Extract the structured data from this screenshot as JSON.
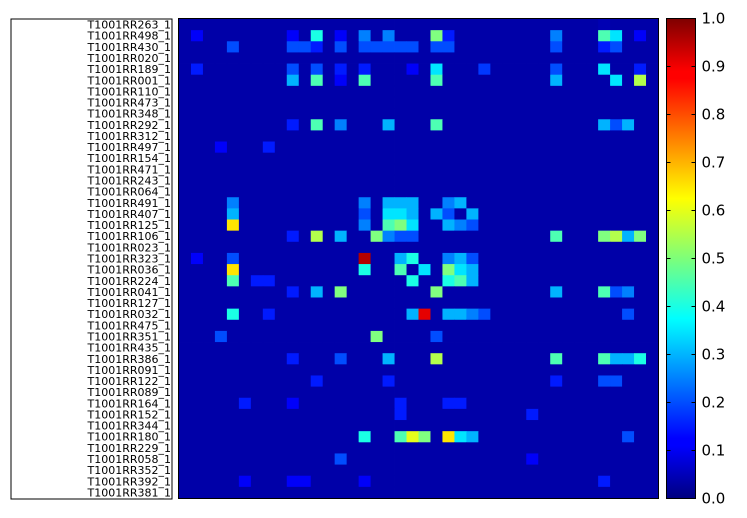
{
  "chart_data": {
    "type": "heatmap",
    "colormap": "jet",
    "rows": [
      "T1001RR263_1",
      "T1001RR498_1",
      "T1001RR430_1",
      "T1001RR020_1",
      "T1001RR189_1",
      "T1001RR001_1",
      "T1001RR110_1",
      "T1001RR473_1",
      "T1001RR348_1",
      "T1001RR292_1",
      "T1001RR312_1",
      "T1001RR497_1",
      "T1001RR154_1",
      "T1001RR471_1",
      "T1001RR243_1",
      "T1001RR064_1",
      "T1001RR491_1",
      "T1001RR407_1",
      "T1001RR125_1",
      "T1001RR106_1",
      "T1001RR023_1",
      "T1001RR323_1",
      "T1001RR036_1",
      "T1001RR224_1",
      "T1001RR041_1",
      "T1001RR127_1",
      "T1001RR032_1",
      "T1001RR475_1",
      "T1001RR351_1",
      "T1001RR435_1",
      "T1001RR386_1",
      "T1001RR091_1",
      "T1001RR122_1",
      "T1001RR089_1",
      "T1001RR164_1",
      "T1001RR152_1",
      "T1001RR344_1",
      "T1001RR180_1",
      "T1001RR229_1",
      "T1001RR058_1",
      "T1001RR352_1",
      "T1001RR392_1",
      "T1001RR381_1"
    ],
    "n_columns": 40,
    "colorbar": {
      "min": 0.0,
      "max": 1.0,
      "ticks": [
        "0.0",
        "0.1",
        "0.2",
        "0.3",
        "0.4",
        "0.5",
        "0.6",
        "0.7",
        "0.8",
        "0.9",
        "1.0"
      ]
    },
    "highlights": [
      {
        "row": 0,
        "col": 35,
        "value": 0.05
      },
      {
        "row": 1,
        "col": 1,
        "value": 0.12
      },
      {
        "row": 1,
        "col": 9,
        "value": 0.12
      },
      {
        "row": 1,
        "col": 11,
        "value": 0.4
      },
      {
        "row": 1,
        "col": 13,
        "value": 0.12
      },
      {
        "row": 1,
        "col": 15,
        "value": 0.25
      },
      {
        "row": 1,
        "col": 17,
        "value": 0.25
      },
      {
        "row": 1,
        "col": 21,
        "value": 0.5
      },
      {
        "row": 1,
        "col": 22,
        "value": 0.15
      },
      {
        "row": 1,
        "col": 31,
        "value": 0.25
      },
      {
        "row": 1,
        "col": 35,
        "value": 0.45
      },
      {
        "row": 1,
        "col": 36,
        "value": 0.35
      },
      {
        "row": 1,
        "col": 38,
        "value": 0.12
      },
      {
        "row": 2,
        "col": 4,
        "value": 0.2
      },
      {
        "row": 2,
        "col": 9,
        "value": 0.2
      },
      {
        "row": 2,
        "col": 10,
        "value": 0.2
      },
      {
        "row": 2,
        "col": 11,
        "value": 0.15
      },
      {
        "row": 2,
        "col": 13,
        "value": 0.2
      },
      {
        "row": 2,
        "col": 15,
        "value": 0.2
      },
      {
        "row": 2,
        "col": 16,
        "value": 0.2
      },
      {
        "row": 2,
        "col": 17,
        "value": 0.2
      },
      {
        "row": 2,
        "col": 18,
        "value": 0.2
      },
      {
        "row": 2,
        "col": 19,
        "value": 0.2
      },
      {
        "row": 2,
        "col": 21,
        "value": 0.2
      },
      {
        "row": 2,
        "col": 22,
        "value": 0.2
      },
      {
        "row": 2,
        "col": 31,
        "value": 0.2
      },
      {
        "row": 2,
        "col": 35,
        "value": 0.15
      },
      {
        "row": 2,
        "col": 36,
        "value": 0.2
      },
      {
        "row": 4,
        "col": 1,
        "value": 0.15
      },
      {
        "row": 4,
        "col": 9,
        "value": 0.2
      },
      {
        "row": 4,
        "col": 11,
        "value": 0.2
      },
      {
        "row": 4,
        "col": 13,
        "value": 0.15
      },
      {
        "row": 4,
        "col": 15,
        "value": 0.15
      },
      {
        "row": 4,
        "col": 19,
        "value": 0.12
      },
      {
        "row": 4,
        "col": 21,
        "value": 0.35
      },
      {
        "row": 4,
        "col": 25,
        "value": 0.18
      },
      {
        "row": 4,
        "col": 31,
        "value": 0.2
      },
      {
        "row": 4,
        "col": 35,
        "value": 0.35
      },
      {
        "row": 4,
        "col": 38,
        "value": 0.15
      },
      {
        "row": 5,
        "col": 9,
        "value": 0.3
      },
      {
        "row": 5,
        "col": 11,
        "value": 0.45
      },
      {
        "row": 5,
        "col": 13,
        "value": 0.12
      },
      {
        "row": 5,
        "col": 15,
        "value": 0.45
      },
      {
        "row": 5,
        "col": 21,
        "value": 0.45
      },
      {
        "row": 5,
        "col": 31,
        "value": 0.3
      },
      {
        "row": 5,
        "col": 36,
        "value": 0.35
      },
      {
        "row": 5,
        "col": 38,
        "value": 0.55
      },
      {
        "row": 9,
        "col": 9,
        "value": 0.15
      },
      {
        "row": 9,
        "col": 11,
        "value": 0.45
      },
      {
        "row": 9,
        "col": 13,
        "value": 0.25
      },
      {
        "row": 9,
        "col": 17,
        "value": 0.3
      },
      {
        "row": 9,
        "col": 21,
        "value": 0.45
      },
      {
        "row": 9,
        "col": 35,
        "value": 0.3
      },
      {
        "row": 9,
        "col": 36,
        "value": 0.2
      },
      {
        "row": 9,
        "col": 37,
        "value": 0.3
      },
      {
        "row": 11,
        "col": 3,
        "value": 0.12
      },
      {
        "row": 11,
        "col": 7,
        "value": 0.15
      },
      {
        "row": 16,
        "col": 4,
        "value": 0.25
      },
      {
        "row": 16,
        "col": 15,
        "value": 0.25
      },
      {
        "row": 16,
        "col": 17,
        "value": 0.3
      },
      {
        "row": 16,
        "col": 18,
        "value": 0.3
      },
      {
        "row": 16,
        "col": 19,
        "value": 0.3
      },
      {
        "row": 16,
        "col": 22,
        "value": 0.25
      },
      {
        "row": 16,
        "col": 23,
        "value": 0.3
      },
      {
        "row": 17,
        "col": 4,
        "value": 0.3
      },
      {
        "row": 17,
        "col": 15,
        "value": 0.2
      },
      {
        "row": 17,
        "col": 17,
        "value": 0.35
      },
      {
        "row": 17,
        "col": 18,
        "value": 0.35
      },
      {
        "row": 17,
        "col": 19,
        "value": 0.3
      },
      {
        "row": 17,
        "col": 21,
        "value": 0.3
      },
      {
        "row": 17,
        "col": 22,
        "value": 0.2
      },
      {
        "row": 17,
        "col": 24,
        "value": 0.3
      },
      {
        "row": 18,
        "col": 4,
        "value": 0.65
      },
      {
        "row": 18,
        "col": 15,
        "value": 0.25
      },
      {
        "row": 18,
        "col": 17,
        "value": 0.45
      },
      {
        "row": 18,
        "col": 18,
        "value": 0.5
      },
      {
        "row": 18,
        "col": 19,
        "value": 0.35
      },
      {
        "row": 18,
        "col": 22,
        "value": 0.3
      },
      {
        "row": 18,
        "col": 23,
        "value": 0.25
      },
      {
        "row": 18,
        "col": 24,
        "value": 0.2
      },
      {
        "row": 19,
        "col": 9,
        "value": 0.15
      },
      {
        "row": 19,
        "col": 11,
        "value": 0.55
      },
      {
        "row": 19,
        "col": 13,
        "value": 0.3
      },
      {
        "row": 19,
        "col": 16,
        "value": 0.5
      },
      {
        "row": 19,
        "col": 17,
        "value": 0.25
      },
      {
        "row": 19,
        "col": 18,
        "value": 0.2
      },
      {
        "row": 19,
        "col": 19,
        "value": 0.2
      },
      {
        "row": 19,
        "col": 31,
        "value": 0.45
      },
      {
        "row": 19,
        "col": 35,
        "value": 0.5
      },
      {
        "row": 19,
        "col": 36,
        "value": 0.55
      },
      {
        "row": 19,
        "col": 37,
        "value": 0.3
      },
      {
        "row": 19,
        "col": 38,
        "value": 0.5
      },
      {
        "row": 21,
        "col": 1,
        "value": 0.12
      },
      {
        "row": 21,
        "col": 4,
        "value": 0.2
      },
      {
        "row": 21,
        "col": 15,
        "value": 0.95
      },
      {
        "row": 21,
        "col": 18,
        "value": 0.3
      },
      {
        "row": 21,
        "col": 19,
        "value": 0.4
      },
      {
        "row": 21,
        "col": 22,
        "value": 0.25
      },
      {
        "row": 21,
        "col": 23,
        "value": 0.3
      },
      {
        "row": 21,
        "col": 24,
        "value": 0.2
      },
      {
        "row": 22,
        "col": 4,
        "value": 0.65
      },
      {
        "row": 22,
        "col": 15,
        "value": 0.4
      },
      {
        "row": 22,
        "col": 18,
        "value": 0.45
      },
      {
        "row": 22,
        "col": 20,
        "value": 0.35
      },
      {
        "row": 22,
        "col": 22,
        "value": 0.5
      },
      {
        "row": 22,
        "col": 23,
        "value": 0.35
      },
      {
        "row": 22,
        "col": 24,
        "value": 0.3
      },
      {
        "row": 23,
        "col": 4,
        "value": 0.45
      },
      {
        "row": 23,
        "col": 6,
        "value": 0.15
      },
      {
        "row": 23,
        "col": 7,
        "value": 0.15
      },
      {
        "row": 23,
        "col": 19,
        "value": 0.4
      },
      {
        "row": 23,
        "col": 22,
        "value": 0.4
      },
      {
        "row": 23,
        "col": 23,
        "value": 0.45
      },
      {
        "row": 23,
        "col": 24,
        "value": 0.3
      },
      {
        "row": 24,
        "col": 9,
        "value": 0.15
      },
      {
        "row": 24,
        "col": 11,
        "value": 0.3
      },
      {
        "row": 24,
        "col": 13,
        "value": 0.5
      },
      {
        "row": 24,
        "col": 21,
        "value": 0.5
      },
      {
        "row": 24,
        "col": 31,
        "value": 0.3
      },
      {
        "row": 24,
        "col": 35,
        "value": 0.45
      },
      {
        "row": 24,
        "col": 36,
        "value": 0.2
      },
      {
        "row": 24,
        "col": 37,
        "value": 0.25
      },
      {
        "row": 26,
        "col": 4,
        "value": 0.4
      },
      {
        "row": 26,
        "col": 7,
        "value": 0.15
      },
      {
        "row": 26,
        "col": 19,
        "value": 0.3
      },
      {
        "row": 26,
        "col": 20,
        "value": 0.9
      },
      {
        "row": 26,
        "col": 22,
        "value": 0.3
      },
      {
        "row": 26,
        "col": 23,
        "value": 0.3
      },
      {
        "row": 26,
        "col": 24,
        "value": 0.25
      },
      {
        "row": 26,
        "col": 25,
        "value": 0.2
      },
      {
        "row": 26,
        "col": 37,
        "value": 0.2
      },
      {
        "row": 28,
        "col": 3,
        "value": 0.2
      },
      {
        "row": 28,
        "col": 16,
        "value": 0.5
      },
      {
        "row": 28,
        "col": 21,
        "value": 0.2
      },
      {
        "row": 30,
        "col": 9,
        "value": 0.15
      },
      {
        "row": 30,
        "col": 13,
        "value": 0.2
      },
      {
        "row": 30,
        "col": 17,
        "value": 0.3
      },
      {
        "row": 30,
        "col": 21,
        "value": 0.55
      },
      {
        "row": 30,
        "col": 31,
        "value": 0.45
      },
      {
        "row": 30,
        "col": 35,
        "value": 0.45
      },
      {
        "row": 30,
        "col": 36,
        "value": 0.3
      },
      {
        "row": 30,
        "col": 37,
        "value": 0.3
      },
      {
        "row": 30,
        "col": 38,
        "value": 0.4
      },
      {
        "row": 32,
        "col": 11,
        "value": 0.15
      },
      {
        "row": 32,
        "col": 17,
        "value": 0.15
      },
      {
        "row": 32,
        "col": 31,
        "value": 0.15
      },
      {
        "row": 32,
        "col": 35,
        "value": 0.2
      },
      {
        "row": 32,
        "col": 36,
        "value": 0.2
      },
      {
        "row": 34,
        "col": 5,
        "value": 0.15
      },
      {
        "row": 34,
        "col": 9,
        "value": 0.12
      },
      {
        "row": 34,
        "col": 18,
        "value": 0.15
      },
      {
        "row": 34,
        "col": 22,
        "value": 0.15
      },
      {
        "row": 34,
        "col": 23,
        "value": 0.15
      },
      {
        "row": 35,
        "col": 18,
        "value": 0.15
      },
      {
        "row": 35,
        "col": 29,
        "value": 0.15
      },
      {
        "row": 37,
        "col": 15,
        "value": 0.4
      },
      {
        "row": 37,
        "col": 18,
        "value": 0.45
      },
      {
        "row": 37,
        "col": 19,
        "value": 0.6
      },
      {
        "row": 37,
        "col": 20,
        "value": 0.5
      },
      {
        "row": 37,
        "col": 22,
        "value": 0.65
      },
      {
        "row": 37,
        "col": 23,
        "value": 0.35
      },
      {
        "row": 37,
        "col": 24,
        "value": 0.3
      },
      {
        "row": 37,
        "col": 37,
        "value": 0.2
      },
      {
        "row": 39,
        "col": 13,
        "value": 0.2
      },
      {
        "row": 39,
        "col": 29,
        "value": 0.12
      },
      {
        "row": 41,
        "col": 5,
        "value": 0.12
      },
      {
        "row": 41,
        "col": 9,
        "value": 0.12
      },
      {
        "row": 41,
        "col": 10,
        "value": 0.12
      },
      {
        "row": 41,
        "col": 15,
        "value": 0.12
      },
      {
        "row": 41,
        "col": 35,
        "value": 0.15
      }
    ],
    "baseline_value": 0.04
  }
}
